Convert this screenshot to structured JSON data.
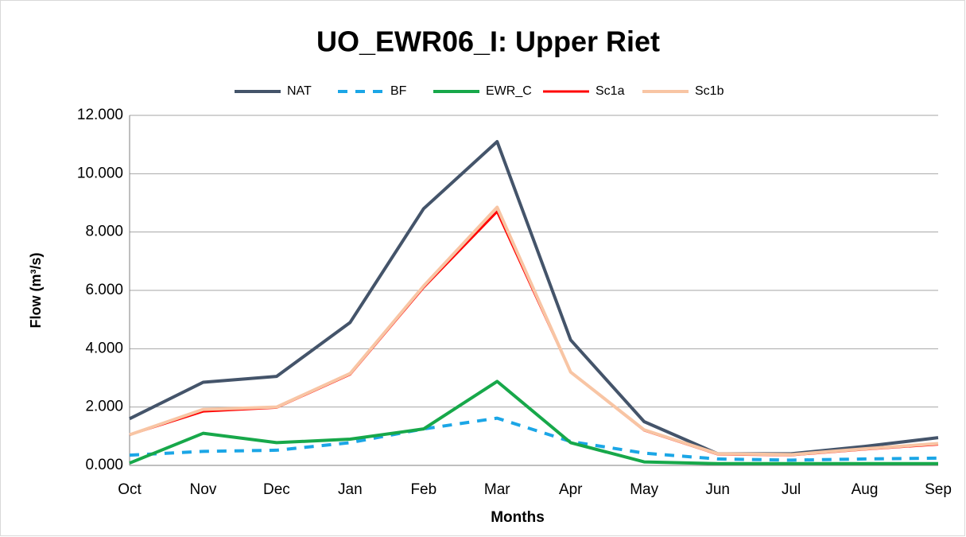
{
  "chart_data": {
    "type": "line",
    "title": "UO_EWR06_I: Upper Riet",
    "x_label": "Months",
    "y_label": "Flow (m³/s)",
    "categories": [
      "Oct",
      "Nov",
      "Dec",
      "Jan",
      "Feb",
      "Mar",
      "Apr",
      "May",
      "Jun",
      "Jul",
      "Aug",
      "Sep"
    ],
    "series": [
      {
        "name": "NAT",
        "color": "#44546a",
        "width": 4,
        "dash": "none",
        "values": [
          1.6,
          2.85,
          3.05,
          4.9,
          8.8,
          11.1,
          4.3,
          1.5,
          0.4,
          0.4,
          0.65,
          0.95
        ]
      },
      {
        "name": "BF",
        "color": "#1ba6e6",
        "width": 4,
        "dash": "12 10",
        "values": [
          0.35,
          0.48,
          0.52,
          0.78,
          1.25,
          1.62,
          0.82,
          0.42,
          0.22,
          0.18,
          0.22,
          0.25
        ]
      },
      {
        "name": "EWR_C",
        "color": "#17a84a",
        "width": 4,
        "dash": "none",
        "values": [
          0.08,
          1.1,
          0.78,
          0.9,
          1.25,
          2.88,
          0.78,
          0.12,
          0.06,
          0.06,
          0.06,
          0.06
        ]
      },
      {
        "name": "Sc1a",
        "color": "#ff0000",
        "width": 3,
        "dash": "none",
        "values": [
          1.05,
          1.85,
          1.98,
          3.12,
          6.1,
          8.7,
          3.2,
          1.2,
          0.38,
          0.35,
          0.55,
          0.72
        ]
      },
      {
        "name": "Sc1b",
        "color": "#f8c5a4",
        "width": 4,
        "dash": "none",
        "values": [
          1.05,
          1.92,
          2.0,
          3.15,
          6.15,
          8.85,
          3.2,
          1.22,
          0.4,
          0.37,
          0.57,
          0.75
        ]
      }
    ],
    "ylim": [
      0,
      12
    ],
    "yticks": [
      {
        "value": 0,
        "label": "0.000"
      },
      {
        "value": 2,
        "label": "2.000"
      },
      {
        "value": 4,
        "label": "4.000"
      },
      {
        "value": 6,
        "label": "6.000"
      },
      {
        "value": 8,
        "label": "8.000"
      },
      {
        "value": 10,
        "label": "10.000"
      },
      {
        "value": 12,
        "label": "12.000"
      }
    ],
    "grid": true,
    "legend": "top"
  }
}
